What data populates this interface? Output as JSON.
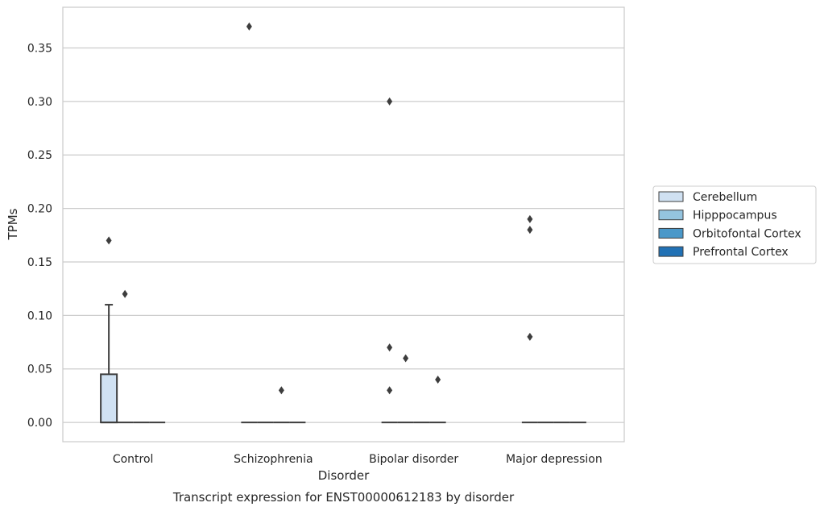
{
  "chart_data": {
    "type": "box",
    "caption": "Transcript expression for ENST00000612183 by disorder",
    "xlabel": "Disorder",
    "ylabel": "TPMs",
    "ylim": [
      -0.018,
      0.388
    ],
    "yticks": [
      "0.00",
      "0.05",
      "0.10",
      "0.15",
      "0.20",
      "0.25",
      "0.30",
      "0.35"
    ],
    "ytick_values": [
      0.0,
      0.05,
      0.1,
      0.15,
      0.2,
      0.25,
      0.3,
      0.35
    ],
    "categories": [
      "Control",
      "Schizophrenia",
      "Bipolar disorder",
      "Major depression"
    ],
    "grid": true,
    "legend_position": "right",
    "series": [
      {
        "name": "Cerebellum",
        "color": "#d0e1f2",
        "boxes": [
          {
            "q1": 0.0,
            "median": 0.0,
            "q3": 0.045,
            "whislo": 0.0,
            "whishi": 0.11,
            "fliers": [
              0.17
            ]
          },
          {
            "q1": 0.0,
            "median": 0.0,
            "q3": 0.0,
            "whislo": 0.0,
            "whishi": 0.0,
            "fliers": [
              0.37
            ]
          },
          {
            "q1": 0.0,
            "median": 0.0,
            "q3": 0.0,
            "whislo": 0.0,
            "whishi": 0.0,
            "fliers": [
              0.3,
              0.07,
              0.03
            ]
          },
          {
            "q1": 0.0,
            "median": 0.0,
            "q3": 0.0,
            "whislo": 0.0,
            "whishi": 0.0,
            "fliers": [
              0.19,
              0.18,
              0.08
            ]
          }
        ]
      },
      {
        "name": "Hipppocampus",
        "color": "#94c4df",
        "boxes": [
          {
            "q1": 0.0,
            "median": 0.0,
            "q3": 0.0,
            "whislo": 0.0,
            "whishi": 0.0,
            "fliers": [
              0.12
            ]
          },
          {
            "q1": 0.0,
            "median": 0.0,
            "q3": 0.0,
            "whislo": 0.0,
            "whishi": 0.0,
            "fliers": []
          },
          {
            "q1": 0.0,
            "median": 0.0,
            "q3": 0.0,
            "whislo": 0.0,
            "whishi": 0.0,
            "fliers": [
              0.06
            ]
          },
          {
            "q1": 0.0,
            "median": 0.0,
            "q3": 0.0,
            "whislo": 0.0,
            "whishi": 0.0,
            "fliers": []
          }
        ]
      },
      {
        "name": "Orbitofontal Cortex",
        "color": "#4a98c9",
        "boxes": [
          {
            "q1": 0.0,
            "median": 0.0,
            "q3": 0.0,
            "whislo": 0.0,
            "whishi": 0.0,
            "fliers": []
          },
          {
            "q1": 0.0,
            "median": 0.0,
            "q3": 0.0,
            "whislo": 0.0,
            "whishi": 0.0,
            "fliers": [
              0.03
            ]
          },
          {
            "q1": 0.0,
            "median": 0.0,
            "q3": 0.0,
            "whislo": 0.0,
            "whishi": 0.0,
            "fliers": []
          },
          {
            "q1": 0.0,
            "median": 0.0,
            "q3": 0.0,
            "whislo": 0.0,
            "whishi": 0.0,
            "fliers": []
          }
        ]
      },
      {
        "name": "Prefrontal Cortex",
        "color": "#2171b5",
        "boxes": [
          {
            "q1": 0.0,
            "median": 0.0,
            "q3": 0.0,
            "whislo": 0.0,
            "whishi": 0.0,
            "fliers": []
          },
          {
            "q1": 0.0,
            "median": 0.0,
            "q3": 0.0,
            "whislo": 0.0,
            "whishi": 0.0,
            "fliers": []
          },
          {
            "q1": 0.0,
            "median": 0.0,
            "q3": 0.0,
            "whislo": 0.0,
            "whishi": 0.0,
            "fliers": [
              0.04
            ]
          },
          {
            "q1": 0.0,
            "median": 0.0,
            "q3": 0.0,
            "whislo": 0.0,
            "whishi": 0.0,
            "fliers": []
          }
        ]
      }
    ]
  }
}
